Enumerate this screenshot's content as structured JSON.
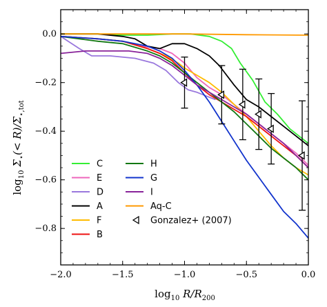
{
  "chart_data": {
    "type": "line",
    "xlabel_math": {
      "base": "log",
      "sub": "10",
      "tail": " R/R",
      "tail_sub": "200"
    },
    "ylabel_math": {
      "base": "log",
      "sub": "10",
      "mid": " Σ",
      "mid_sub": "⋆",
      "mid2": "(< R)/Σ",
      "mid2_sub": "⋆,tot"
    },
    "xlim": [
      -2.0,
      0.0
    ],
    "ylim": [
      -0.95,
      0.1
    ],
    "xticks": [
      -2.0,
      -1.5,
      -1.0,
      -0.5,
      0.0
    ],
    "xtick_labels": [
      "−2.0",
      "−1.5",
      "−1.0",
      "−0.5",
      "0.0"
    ],
    "yticks": [
      0.0,
      -0.2,
      -0.4,
      -0.6,
      -0.8
    ],
    "ytick_labels": [
      "0.0",
      "−0.2",
      "−0.4",
      "−0.6",
      "−0.8"
    ],
    "grid": false,
    "legend_position": "lower-left",
    "series": [
      {
        "name": "C",
        "color": "#33ee33",
        "x": [
          -2.0,
          -1.7,
          -1.5,
          -1.3,
          -1.1,
          -0.95,
          -0.8,
          -0.7,
          -0.62,
          -0.55,
          -0.45,
          -0.35,
          -0.25,
          -0.15,
          -0.05,
          0.0
        ],
        "y": [
          0.0,
          0.0,
          -0.005,
          -0.005,
          0.0,
          0.0,
          -0.01,
          -0.03,
          -0.06,
          -0.12,
          -0.19,
          -0.28,
          -0.33,
          -0.39,
          -0.43,
          -0.45
        ]
      },
      {
        "name": "E",
        "color": "#ee66bb",
        "x": [
          -2.0,
          -1.7,
          -1.5,
          -1.35,
          -1.2,
          -1.1,
          -1.0,
          -0.9,
          -0.8,
          -0.7,
          -0.6,
          -0.5,
          -0.4,
          -0.3,
          -0.2,
          -0.1,
          0.0
        ],
        "y": [
          -0.01,
          -0.02,
          -0.03,
          -0.05,
          -0.06,
          -0.08,
          -0.12,
          -0.18,
          -0.22,
          -0.25,
          -0.29,
          -0.33,
          -0.37,
          -0.41,
          -0.45,
          -0.49,
          -0.54
        ]
      },
      {
        "name": "D",
        "color": "#9977dd",
        "x": [
          -2.0,
          -1.85,
          -1.75,
          -1.6,
          -1.4,
          -1.25,
          -1.15,
          -1.05,
          -0.97,
          -0.9,
          -0.85,
          -0.8,
          -0.75
        ],
        "y": [
          -0.01,
          -0.06,
          -0.09,
          -0.09,
          -0.1,
          -0.12,
          -0.15,
          -0.2,
          -0.23,
          -0.24,
          -0.25,
          -0.26,
          -0.27
        ]
      },
      {
        "name": "A",
        "color": "#000000",
        "x": [
          -2.0,
          -1.7,
          -1.5,
          -1.4,
          -1.3,
          -1.2,
          -1.1,
          -1.0,
          -0.9,
          -0.8,
          -0.72,
          -0.6,
          -0.5,
          -0.4,
          -0.3,
          -0.2,
          -0.1,
          0.0
        ],
        "y": [
          0.0,
          0.0,
          -0.01,
          -0.02,
          -0.05,
          -0.06,
          -0.04,
          -0.04,
          -0.06,
          -0.09,
          -0.13,
          -0.21,
          -0.27,
          -0.3,
          -0.34,
          -0.38,
          -0.42,
          -0.46
        ]
      },
      {
        "name": "F",
        "color": "#ffbb00",
        "x": [
          -2.0,
          -1.7,
          -1.5,
          -1.3,
          -1.15,
          -1.05,
          -1.0,
          -0.9,
          -0.8,
          -0.7,
          -0.6,
          -0.5,
          -0.4,
          -0.3,
          -0.2,
          -0.1,
          0.0
        ],
        "y": [
          -0.01,
          -0.02,
          -0.03,
          -0.06,
          -0.09,
          -0.12,
          -0.14,
          -0.17,
          -0.2,
          -0.24,
          -0.29,
          -0.34,
          -0.4,
          -0.46,
          -0.51,
          -0.55,
          -0.58
        ]
      },
      {
        "name": "B",
        "color": "#ee1111",
        "x": [
          -2.0,
          -1.7,
          -1.5,
          -1.3,
          -1.2,
          -1.1,
          -1.0,
          -0.9,
          -0.8,
          -0.7,
          -0.6,
          -0.5,
          -0.4,
          -0.3,
          -0.2,
          -0.1,
          0.0
        ],
        "y": [
          -0.01,
          -0.02,
          -0.03,
          -0.06,
          -0.08,
          -0.11,
          -0.16,
          -0.21,
          -0.25,
          -0.28,
          -0.31,
          -0.34,
          -0.38,
          -0.42,
          -0.46,
          -0.5,
          -0.55
        ]
      },
      {
        "name": "H",
        "color": "#117711",
        "x": [
          -2.0,
          -1.7,
          -1.5,
          -1.3,
          -1.2,
          -1.1,
          -1.0,
          -0.9,
          -0.8,
          -0.7,
          -0.6,
          -0.5,
          -0.4,
          -0.3,
          -0.2,
          -0.1,
          0.0
        ],
        "y": [
          -0.01,
          -0.03,
          -0.04,
          -0.07,
          -0.09,
          -0.12,
          -0.16,
          -0.2,
          -0.24,
          -0.28,
          -0.32,
          -0.37,
          -0.42,
          -0.47,
          -0.51,
          -0.55,
          -0.6
        ]
      },
      {
        "name": "G",
        "color": "#1133cc",
        "x": [
          -2.0,
          -1.7,
          -1.5,
          -1.3,
          -1.2,
          -1.1,
          -1.0,
          -0.9,
          -0.8,
          -0.7,
          -0.6,
          -0.5,
          -0.4,
          -0.3,
          -0.2,
          -0.1,
          0.0
        ],
        "y": [
          -0.01,
          -0.02,
          -0.03,
          -0.05,
          -0.07,
          -0.1,
          -0.15,
          -0.21,
          -0.28,
          -0.36,
          -0.44,
          -0.52,
          -0.59,
          -0.66,
          -0.73,
          -0.78,
          -0.84
        ]
      },
      {
        "name": "I",
        "color": "#882299",
        "x": [
          -2.0,
          -1.8,
          -1.6,
          -1.45,
          -1.3,
          -1.2,
          -1.1,
          -1.0,
          -0.9,
          -0.8,
          -0.7,
          -0.6,
          -0.5,
          -0.4,
          -0.3,
          -0.2,
          -0.1,
          0.0
        ],
        "y": [
          -0.08,
          -0.07,
          -0.07,
          -0.07,
          -0.08,
          -0.1,
          -0.13,
          -0.17,
          -0.21,
          -0.24,
          -0.27,
          -0.3,
          -0.33,
          -0.37,
          -0.41,
          -0.45,
          -0.5,
          -0.55
        ]
      },
      {
        "name": "Aq-C",
        "color": "#ff9900",
        "x": [
          -2.0,
          -1.5,
          -1.0,
          -0.5,
          0.0
        ],
        "y": [
          0.0,
          0.0,
          0.0,
          -0.003,
          -0.005
        ]
      }
    ],
    "observations": {
      "name": "Gonzalez+ (2007)",
      "marker": "left-triangle",
      "color": "#000000",
      "points": [
        {
          "x": -1.0,
          "y": -0.2,
          "err": 0.105
        },
        {
          "x": -0.7,
          "y": -0.25,
          "err": 0.12
        },
        {
          "x": -0.53,
          "y": -0.29,
          "err": 0.145
        },
        {
          "x": -0.4,
          "y": -0.33,
          "err": 0.145
        },
        {
          "x": -0.3,
          "y": -0.39,
          "err": 0.145
        },
        {
          "x": -0.05,
          "y": -0.5,
          "err": 0.225
        }
      ]
    },
    "legend": {
      "columns": [
        [
          "C",
          "E",
          "D",
          "A",
          "F",
          "B"
        ],
        [
          "H",
          "G",
          "I",
          "Aq-C",
          "Gonzalez+ (2007)"
        ]
      ]
    }
  }
}
